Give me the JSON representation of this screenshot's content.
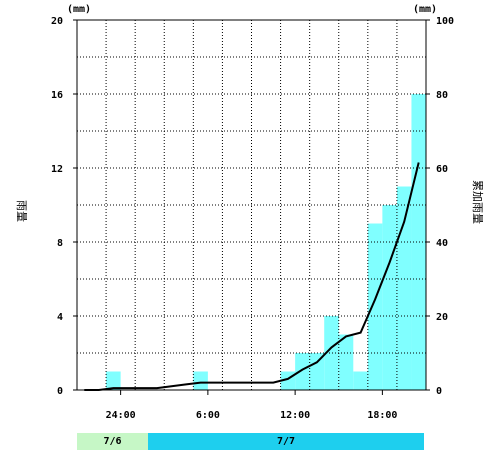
{
  "chart_data": {
    "type": "bar",
    "ylabel_left": "雨量",
    "ylabel_right": "累加雨量",
    "unit_left": "(mm)",
    "unit_right": "(mm)",
    "ylim_left": [
      0,
      20
    ],
    "ylim_right": [
      0,
      100
    ],
    "left_ticks": [
      "0",
      "4",
      "8",
      "12",
      "16",
      "20"
    ],
    "right_ticks": [
      "0",
      "20",
      "40",
      "60",
      "80",
      "100"
    ],
    "x_ticks": [
      "24:00",
      "6:00",
      "12:00",
      "18:00"
    ],
    "hourly_rain": [
      0,
      0,
      1,
      0,
      0,
      0,
      0,
      0,
      1,
      0,
      0,
      0,
      0,
      0,
      1,
      2,
      2,
      4,
      3,
      1,
      9,
      10,
      11,
      16
    ],
    "cumulative_rain": [
      0,
      0,
      0.5,
      0.5,
      0.5,
      0.5,
      1,
      1.5,
      2,
      2,
      2,
      2,
      2,
      2,
      3,
      5.5,
      7.5,
      11.5,
      14.5,
      15.5,
      24.5,
      34.5,
      45.5,
      61.5
    ],
    "bar_color": "#80ffff",
    "line_color": "#000000"
  },
  "date_band": [
    {
      "label": "7/6",
      "color": "#c6f7c6"
    },
    {
      "label": "7/7",
      "color": "#1ecfee"
    }
  ]
}
